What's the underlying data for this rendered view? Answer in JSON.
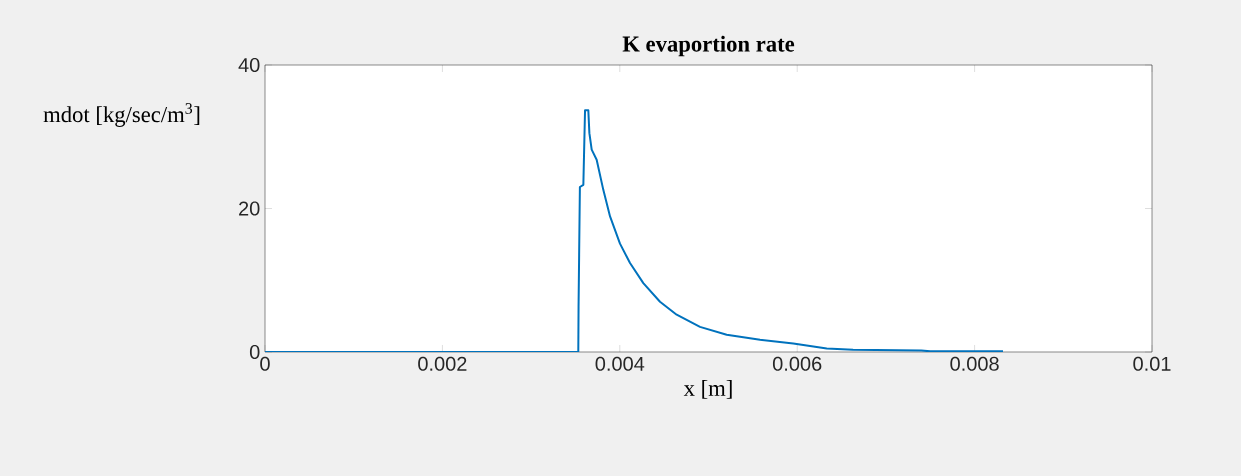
{
  "chart_data": {
    "type": "line",
    "title": "K evaportion rate",
    "xlabel": "x [m]",
    "ylabel": "mdot [kg/sec/m$^{3}$]",
    "xlim": [
      0,
      0.01
    ],
    "ylim": [
      0,
      40
    ],
    "xticks": [
      0,
      0.002,
      0.004,
      0.006,
      0.008,
      0.01
    ],
    "yticks": [
      0,
      20,
      40
    ],
    "grid": false,
    "series": [
      {
        "color": "#0072bd",
        "x": [
          0,
          0.0035,
          0.003532,
          0.003535,
          0.00355,
          0.003589,
          0.003608,
          0.003645,
          0.003657,
          0.003683,
          0.003739,
          0.003814,
          0.00389,
          0.004002,
          0.004115,
          0.004265,
          0.004453,
          0.004641,
          0.004904,
          0.005205,
          0.005581,
          0.005956,
          0.006333,
          0.00663,
          0.0074,
          0.0075,
          0.00832
        ],
        "values": [
          0,
          0,
          0,
          6.3,
          23.0,
          23.3,
          33.7,
          33.7,
          30.5,
          28.2,
          26.8,
          22.6,
          18.9,
          15.1,
          12.4,
          9.6,
          7.0,
          5.2,
          3.5,
          2.4,
          1.7,
          1.2,
          0.5,
          0.3,
          0.2,
          0.1,
          0.1
        ]
      }
    ]
  }
}
